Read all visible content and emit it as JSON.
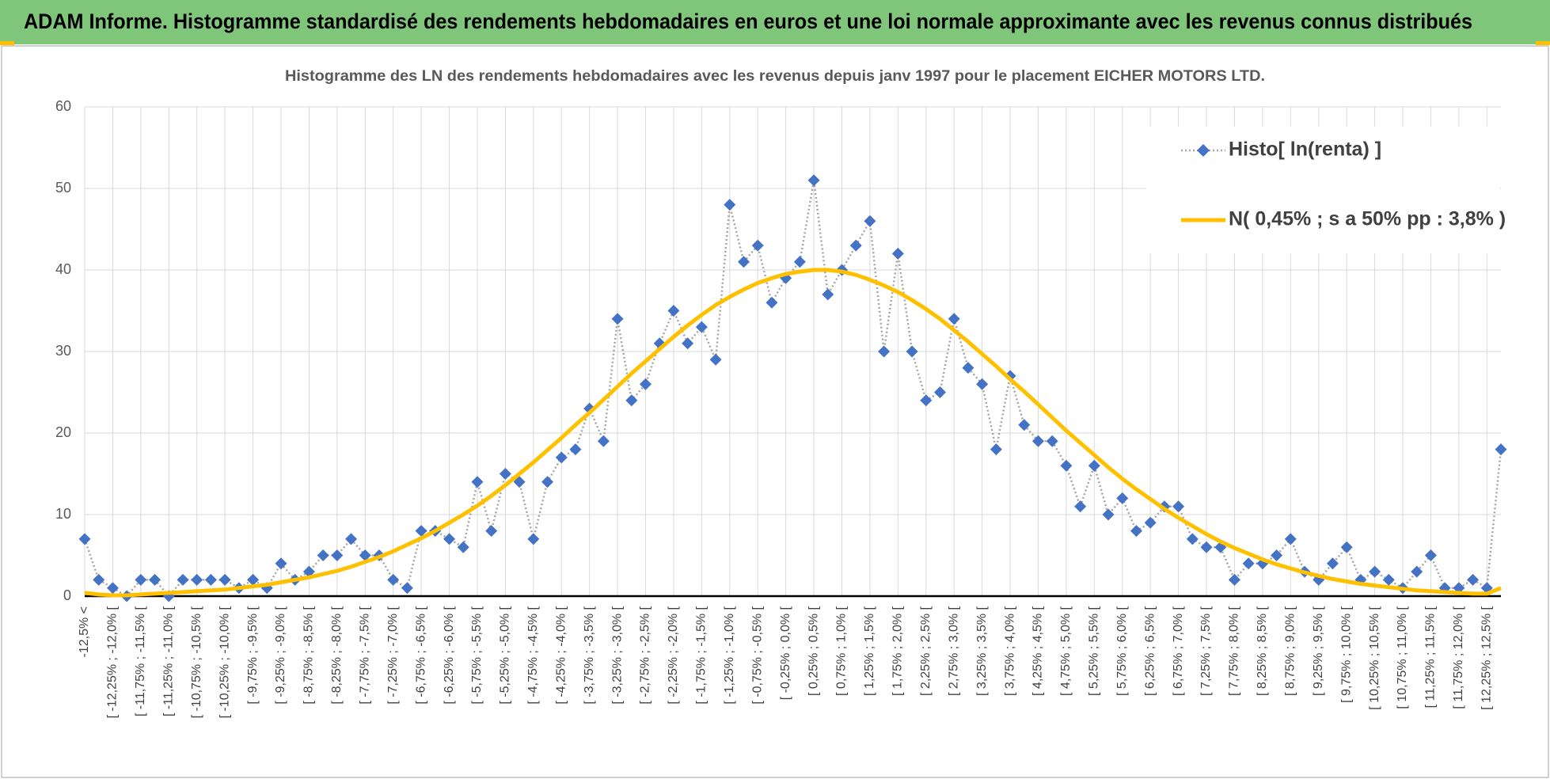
{
  "chart_data": {
    "type": "line",
    "title": "ADAM Informe. Histogramme standardisé des rendements hebdomadaires en euros et une loi normale approximante avec les revenus connus distribués",
    "subtitle": "Histogramme des LN des rendements hebdomadaires avec les revenus depuis janv 1997 pour le placement EICHER MOTORS LTD.",
    "categories": [
      "-12,5% <",
      null,
      "[ -12,25% ; -12,0% [",
      null,
      "[ -11,75% ; -11,5% [",
      null,
      "[ -11,25% ; -11,0% [",
      null,
      "[ -10,75% ; -10,5% [",
      null,
      "[ -10,25% ; -10,0% [",
      null,
      "[ -9,75% ; -9,5% [",
      null,
      "[ -9,25% ; -9,0% [",
      null,
      "[ -8,75% ; -8,5% [",
      null,
      "[ -8,25% ; -8,0% [",
      null,
      "[ -7,75% ; -7,5% [",
      null,
      "[ -7,25% ; -7,0% [",
      null,
      "[ -6,75% ; -6,5% [",
      null,
      "[ -6,25% ; -6,0% [",
      null,
      "[ -5,75% ; -5,5% [",
      null,
      "[ -5,25% ; -5,0% [",
      null,
      "[ -4,75% ; -4,5% [",
      null,
      "[ -4,25% ; -4,0% [",
      null,
      "[ -3,75% ; -3,5% [",
      null,
      "[ -3,25% ; -3,0% [",
      null,
      "[ -2,75% ; -2,5% [",
      null,
      "[ -2,25% ; -2,0% [",
      null,
      "[ -1,75% ; -1,5% [",
      null,
      "[ -1,25% ; -1,0% [",
      null,
      "[ -0,75% ; -0,5% [",
      null,
      "[ -0,25% ; 0,0% [",
      null,
      "[ 0,25% ; 0,5% [",
      null,
      "[ 0,75% ; 1,0% [",
      null,
      "[ 1,25% ; 1,5% [",
      null,
      "[ 1,75% ; 2,0% [",
      null,
      "[ 2,25% ; 2,5% [",
      null,
      "[ 2,75% ; 3,0% [",
      null,
      "[ 3,25% ; 3,5% [",
      null,
      "[ 3,75% ; 4,0% [",
      null,
      "[ 4,25% ; 4,5% [",
      null,
      "[ 4,75% ; 5,0% [",
      null,
      "[ 5,25% ; 5,5% [",
      null,
      "[ 5,75% ; 6,0% [",
      null,
      "[ 6,25% ; 6,5% [",
      null,
      "[ 6,75% ; 7,0% [",
      null,
      "[ 7,25% ; 7,5% [",
      null,
      "[ 7,75% ; 8,0% [",
      null,
      "[ 8,25% ; 8,5% [",
      null,
      "[ 8,75% ; 9,0% [",
      null,
      "[ 9,25% ; 9,5% [",
      null,
      "[ 9,75% ; 10,0% [",
      null,
      "[ 10,25% ; 10,5% [",
      null,
      "[ 10,75% ; 11,0% [",
      null,
      "[ 11,25% ; 11,5% [",
      null,
      "[ 11,75% ; 12,0% [",
      null,
      "[ 12,25% ; 12,5% [",
      null
    ],
    "series": [
      {
        "name": "Histo[ ln(renta) ]",
        "color": "#4472c4",
        "line_color": "#a5a5a5",
        "line_style": "dotted",
        "marker": "diamond",
        "values": [
          7,
          2,
          1,
          0,
          2,
          2,
          0,
          2,
          2,
          2,
          2,
          1,
          2,
          1,
          4,
          2,
          3,
          5,
          5,
          7,
          5,
          5,
          2,
          1,
          8,
          8,
          7,
          6,
          14,
          8,
          15,
          14,
          7,
          14,
          17,
          18,
          23,
          19,
          34,
          24,
          26,
          31,
          35,
          31,
          33,
          29,
          48,
          41,
          43,
          36,
          39,
          41,
          51,
          37,
          40,
          43,
          46,
          30,
          42,
          30,
          24,
          25,
          34,
          28,
          26,
          18,
          27,
          21,
          19,
          19,
          16,
          11,
          16,
          10,
          12,
          8,
          9,
          11,
          11,
          7,
          6,
          6,
          2,
          4,
          4,
          5,
          7,
          3,
          2,
          4,
          6,
          2,
          3,
          2,
          1,
          3,
          5,
          1,
          1,
          2,
          1,
          18
        ]
      },
      {
        "name": "N( 0,45% ; s a 50% pp : 3,8% )",
        "color": "#ffc000",
        "line_style": "solid",
        "marker": "none",
        "values": [
          0.4,
          0.2,
          0.1,
          0.1,
          0.2,
          0.3,
          0.4,
          0.5,
          0.6,
          0.7,
          0.8,
          1.0,
          1.2,
          1.4,
          1.7,
          2.0,
          2.3,
          2.7,
          3.1,
          3.6,
          4.2,
          4.8,
          5.5,
          6.3,
          7.1,
          8.0,
          9.0,
          10.0,
          11.1,
          12.3,
          13.6,
          15.0,
          16.4,
          17.9,
          19.4,
          21.0,
          22.5,
          24.1,
          25.7,
          27.3,
          28.8,
          30.3,
          31.8,
          33.2,
          34.5,
          35.7,
          36.7,
          37.6,
          38.4,
          39.0,
          39.5,
          39.8,
          40.0,
          40.0,
          39.8,
          39.4,
          38.8,
          38.1,
          37.3,
          36.3,
          35.2,
          34.0,
          32.6,
          31.2,
          29.7,
          28.2,
          26.6,
          25.1,
          23.5,
          21.9,
          20.3,
          18.8,
          17.3,
          15.8,
          14.4,
          13.1,
          11.9,
          10.7,
          9.6,
          8.6,
          7.6,
          6.7,
          5.9,
          5.2,
          4.5,
          3.9,
          3.4,
          2.9,
          2.5,
          2.1,
          1.8,
          1.5,
          1.3,
          1.1,
          0.9,
          0.7,
          0.6,
          0.5,
          0.4,
          0.3,
          0.3,
          1.0
        ]
      }
    ],
    "ylim": [
      0,
      60
    ],
    "yticks": [
      0,
      10,
      20,
      30,
      40,
      50,
      60
    ],
    "grid": true,
    "legend": "top-right"
  }
}
